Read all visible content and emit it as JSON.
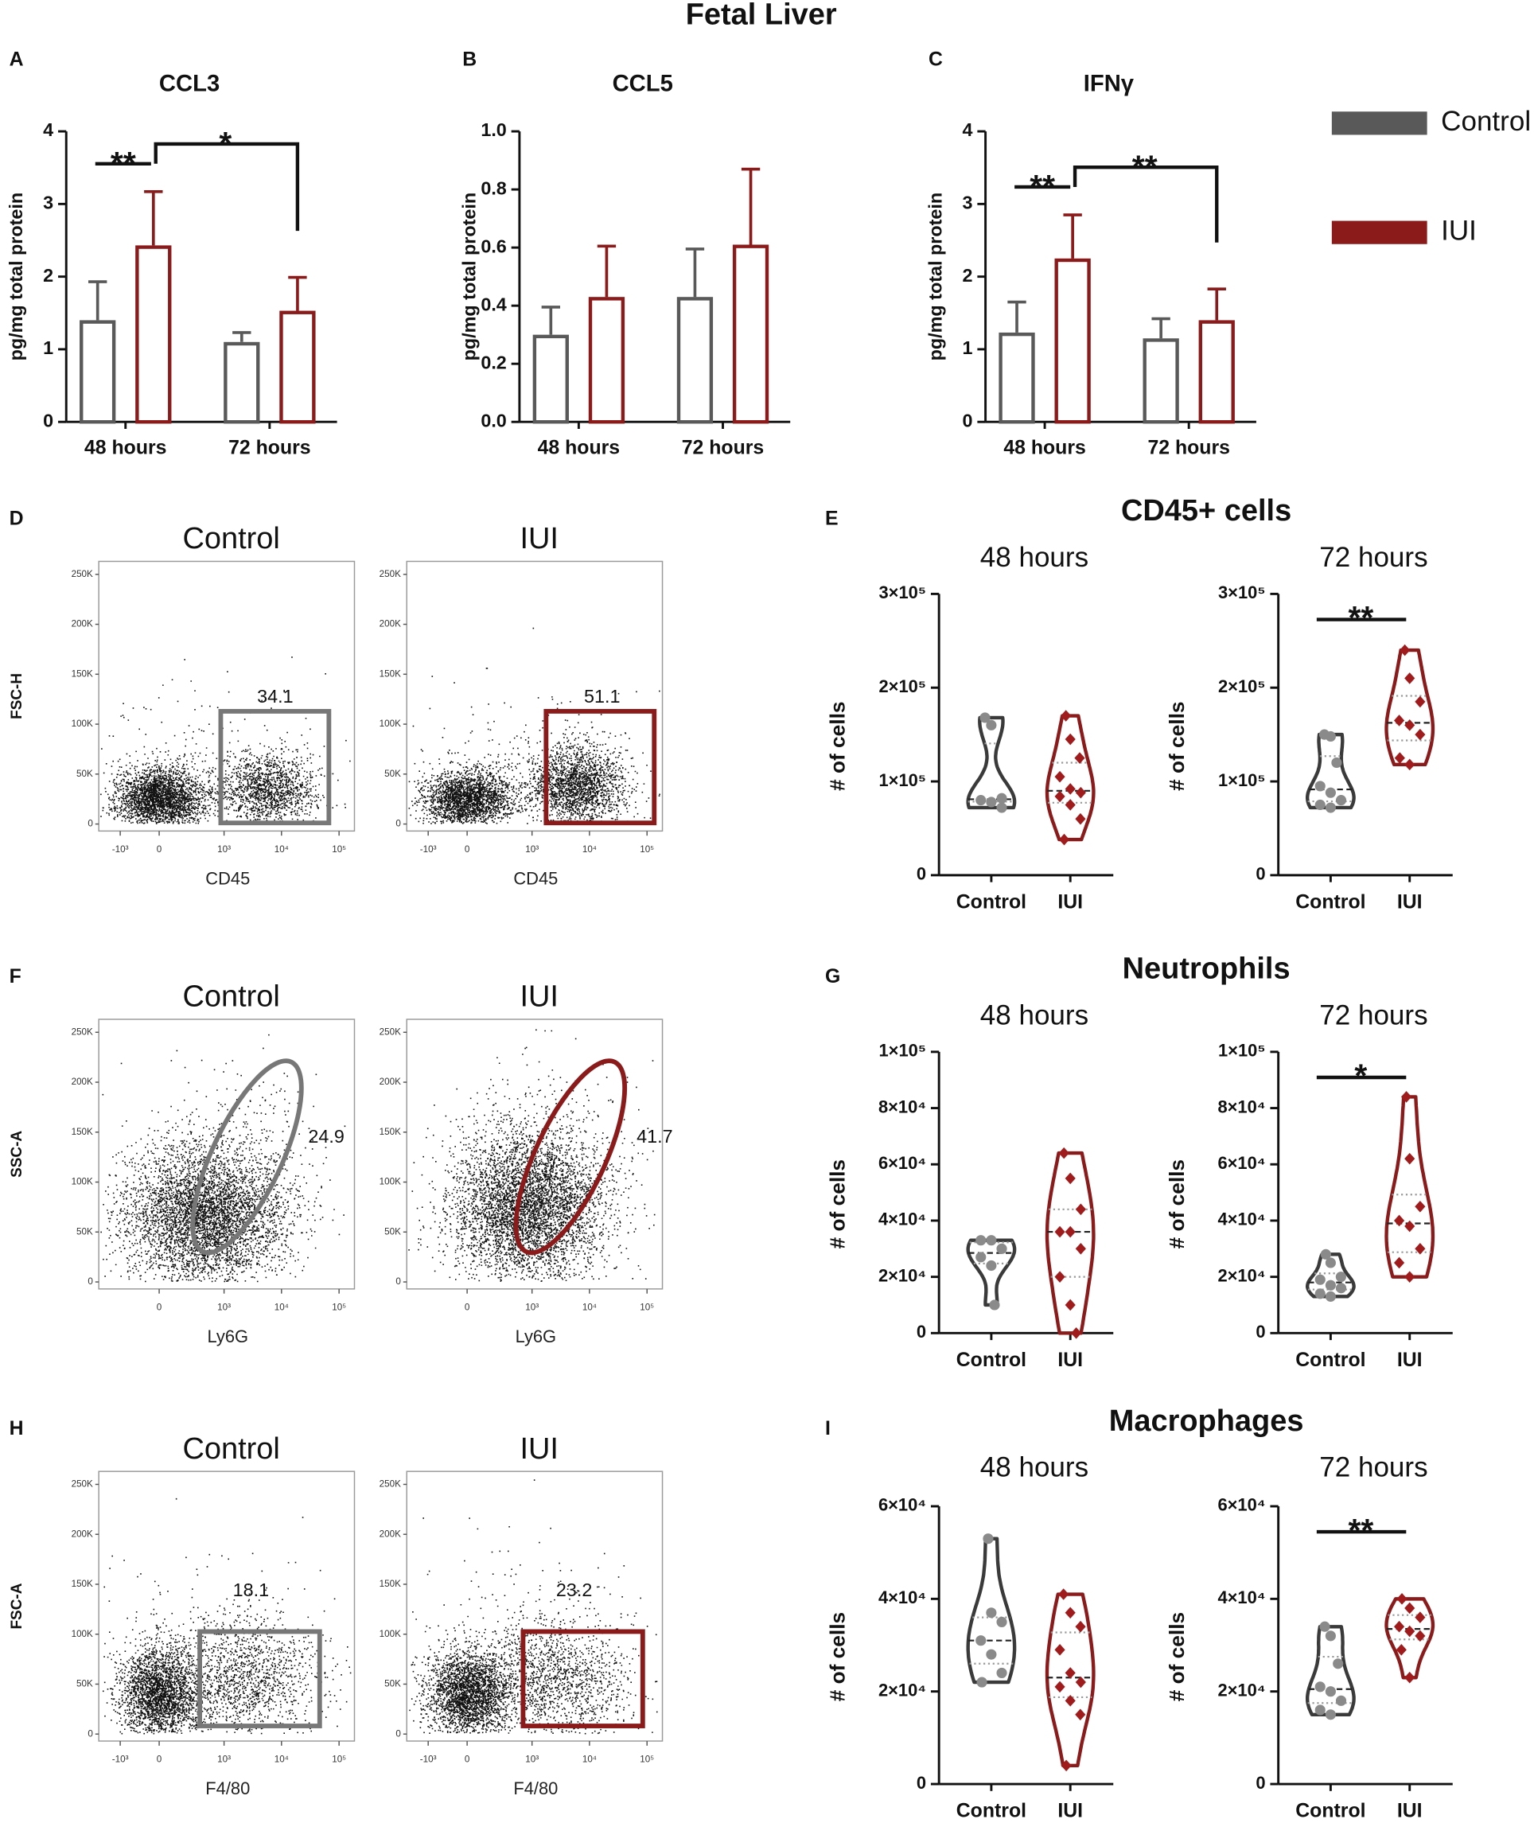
{
  "title": "Fetal Liver",
  "chart_data": [
    {
      "type": "bar",
      "panel": "A",
      "title": "CCL3",
      "ylabel": "pg/mg total protein",
      "categories": [
        "48 hours",
        "72 hours"
      ],
      "series": [
        {
          "color": "#595959",
          "values": [
            1.4,
            1.1
          ],
          "errors": [
            0.53,
            0.13
          ]
        },
        {
          "color": "#8b1a1a",
          "values": [
            2.43,
            1.53
          ],
          "errors": [
            0.74,
            0.46
          ]
        }
      ],
      "ylim": [
        0,
        4
      ],
      "yticks": [
        0,
        1,
        2,
        3,
        4
      ],
      "annotations": [
        "**",
        "*"
      ]
    },
    {
      "type": "bar",
      "panel": "B",
      "title": "CCL5",
      "ylabel": "pg/mg total protein",
      "categories": [
        "48 hours",
        "72 hours"
      ],
      "series": [
        {
          "color": "#595959",
          "values": [
            0.3,
            0.43
          ],
          "errors": [
            0.095,
            0.165
          ]
        },
        {
          "color": "#8b1a1a",
          "values": [
            0.43,
            0.61
          ],
          "errors": [
            0.175,
            0.26
          ]
        }
      ],
      "ylim": [
        0,
        1
      ],
      "yticks": [
        {
          "value": 0,
          "label": "0.0"
        },
        0.2,
        0.4,
        0.6,
        0.8,
        {
          "value": 1,
          "label": "1.0"
        }
      ]
    },
    {
      "type": "bar",
      "panel": "C",
      "title": "IFNγ",
      "ylabel": "pg/mg total protein",
      "categories": [
        "48 hours",
        "72 hours"
      ],
      "series": [
        {
          "name": "Control",
          "color": "#595959",
          "values": [
            1.23,
            1.15
          ],
          "errors": [
            0.42,
            0.27
          ]
        },
        {
          "name": "IUI",
          "color": "#8b1a1a",
          "values": [
            2.25,
            1.4
          ],
          "errors": [
            0.6,
            0.43
          ]
        }
      ],
      "ylim": [
        0,
        4
      ],
      "yticks": [
        0,
        1,
        2,
        3,
        4
      ],
      "annotations": [
        "**",
        "**"
      ],
      "legend": "right"
    },
    {
      "type": "flow",
      "panel": "D",
      "xlabel": "CD45",
      "ylabel": "FSC-H",
      "gate": "rectangle",
      "plots": [
        {
          "title": "Control",
          "color": "#777777",
          "gate_value": 34.1
        },
        {
          "title": "IUI",
          "color": "#8b1a1a",
          "gate_value": 51.1
        }
      ],
      "xlim": [
        -4200,
        185000
      ],
      "xticks": [
        {
          "value": -1000,
          "label": "-10³"
        },
        0,
        {
          "value": 1000,
          "label": "10³"
        },
        {
          "value": 10000,
          "label": "10⁴"
        },
        {
          "value": 100000,
          "label": "10⁵"
        }
      ],
      "ylim": [
        -7000,
        263000
      ],
      "yticks": [
        0,
        {
          "value": 50000,
          "label": "50K"
        },
        {
          "value": 100000,
          "label": "100K"
        },
        {
          "value": 150000,
          "label": "150K"
        },
        {
          "value": 200000,
          "label": "200K"
        },
        {
          "value": 250000,
          "label": "250K"
        }
      ]
    },
    {
      "type": "flow",
      "panel": "F",
      "xlabel": "Ly6G",
      "ylabel": "SSC-A",
      "gate": "ellipse",
      "plots": [
        {
          "title": "Control",
          "color": "#777777",
          "gate_value": 24.9
        },
        {
          "title": "IUI",
          "color": "#8b1a1a",
          "gate_value": 41.7
        }
      ],
      "xlim": [
        -4200,
        185000
      ],
      "xticks": [
        0,
        {
          "value": 1000,
          "label": "10³"
        },
        {
          "value": 10000,
          "label": "10⁴"
        },
        {
          "value": 100000,
          "label": "10⁵"
        }
      ],
      "ylim": [
        -7000,
        263000
      ],
      "yticks": [
        0,
        {
          "value": 50000,
          "label": "50K"
        },
        {
          "value": 100000,
          "label": "100K"
        },
        {
          "value": 150000,
          "label": "150K"
        },
        {
          "value": 200000,
          "label": "200K"
        },
        {
          "value": 250000,
          "label": "250K"
        }
      ]
    },
    {
      "type": "flow",
      "panel": "H",
      "xlabel": "F4/80",
      "ylabel": "FSC-A",
      "gate": "rectangle",
      "plots": [
        {
          "title": "Control",
          "color": "#777777",
          "gate_value": 18.1
        },
        {
          "title": "IUI",
          "color": "#8b1a1a",
          "gate_value": 23.2
        }
      ],
      "xlim": [
        -4200,
        185000
      ],
      "xticks": [
        {
          "value": -1000,
          "label": "-10³"
        },
        0,
        {
          "value": 1000,
          "label": "10³"
        },
        {
          "value": 10000,
          "label": "10⁴"
        },
        {
          "value": 100000,
          "label": "10⁵"
        }
      ],
      "ylim": [
        -7000,
        263000
      ],
      "yticks": [
        0,
        {
          "value": 50000,
          "label": "50K"
        },
        {
          "value": 100000,
          "label": "100K"
        },
        {
          "value": 150000,
          "label": "150K"
        },
        {
          "value": 200000,
          "label": "200K"
        },
        {
          "value": 250000,
          "label": "250K"
        }
      ]
    },
    {
      "type": "violin",
      "panel": "E",
      "title": "CD45+ cells",
      "colors": [
        "#3a3a3a",
        "#8b1a1a"
      ],
      "point_colors": [
        "#8a8a8a",
        "#a01c1c"
      ],
      "ylim": [
        0,
        300000
      ],
      "yticks": [
        0,
        {
          "value": 100000,
          "label": "1×10⁵"
        },
        {
          "value": 200000,
          "label": "2×10⁵"
        },
        {
          "value": 300000,
          "label": "3×10⁵"
        }
      ],
      "groups": [
        {
          "subtitle": "48 hours",
          "ylabel": "# of cells",
          "categories": [
            "Control",
            "IUI"
          ],
          "values": [
            [
              168000,
              160000,
              82000,
              80000,
              78000,
              72000
            ],
            [
              170000,
              145000,
              125000,
              105000,
              92000,
              88000,
              84000,
              75000,
              60000,
              38000
            ]
          ]
        },
        {
          "subtitle": "72 hours",
          "ylabel": "# of cells",
          "categories": [
            "Control",
            "IUI"
          ],
          "values": [
            [
              150000,
              148000,
              120000,
              95000,
              88000,
              80000,
              75000,
              72000
            ],
            [
              240000,
              210000,
              185000,
              165000,
              160000,
              150000,
              125000,
              118000
            ]
          ],
          "annotation": "**"
        }
      ]
    },
    {
      "type": "violin",
      "panel": "G",
      "title": "Neutrophils",
      "colors": [
        "#3a3a3a",
        "#8b1a1a"
      ],
      "point_colors": [
        "#8a8a8a",
        "#a01c1c"
      ],
      "ylim": [
        0,
        100000
      ],
      "yticks": [
        0,
        {
          "value": 20000,
          "label": "2×10⁴"
        },
        {
          "value": 40000,
          "label": "4×10⁴"
        },
        {
          "value": 60000,
          "label": "6×10⁴"
        },
        {
          "value": 80000,
          "label": "8×10⁴"
        },
        {
          "value": 100000,
          "label": "1×10⁵"
        }
      ],
      "groups": [
        {
          "subtitle": "48 hours",
          "ylabel": "# of cells",
          "categories": [
            "Control",
            "IUI"
          ],
          "values": [
            [
              33000,
              33000,
              30000,
              27000,
              24000,
              10000
            ],
            [
              64000,
              55000,
              44000,
              36000,
              36000,
              30000,
              20000,
              10000,
              0
            ]
          ]
        },
        {
          "subtitle": "72 hours",
          "ylabel": "# of cells",
          "categories": [
            "Control",
            "IUI"
          ],
          "values": [
            [
              28000,
              25000,
              20000,
              19000,
              17000,
              16000,
              14000,
              13000
            ],
            [
              84000,
              62000,
              45000,
              40000,
              38000,
              30000,
              25000,
              20000
            ]
          ],
          "annotation": "*"
        }
      ]
    },
    {
      "type": "violin",
      "panel": "I",
      "title": "Macrophages",
      "colors": [
        "#3a3a3a",
        "#8b1a1a"
      ],
      "point_colors": [
        "#8a8a8a",
        "#a01c1c"
      ],
      "ylim": [
        0,
        60000
      ],
      "yticks": [
        0,
        {
          "value": 20000,
          "label": "2×10⁴"
        },
        {
          "value": 40000,
          "label": "4×10⁴"
        },
        {
          "value": 60000,
          "label": "6×10⁴"
        }
      ],
      "groups": [
        {
          "subtitle": "48 hours",
          "ylabel": "# of cells",
          "categories": [
            "Control",
            "IUI"
          ],
          "values": [
            [
              53000,
              37000,
              35000,
              31000,
              28000,
              24000,
              22000
            ],
            [
              41000,
              37000,
              34000,
              29000,
              24000,
              22000,
              21000,
              18000,
              15000,
              4000
            ]
          ]
        },
        {
          "subtitle": "72 hours",
          "ylabel": "# of cells",
          "categories": [
            "Control",
            "IUI"
          ],
          "values": [
            [
              34000,
              32000,
              26000,
              21000,
              20000,
              18000,
              16000,
              15000
            ],
            [
              40000,
              38000,
              36000,
              34000,
              33000,
              32000,
              29000,
              23000
            ]
          ],
          "annotation": "**"
        }
      ]
    }
  ]
}
